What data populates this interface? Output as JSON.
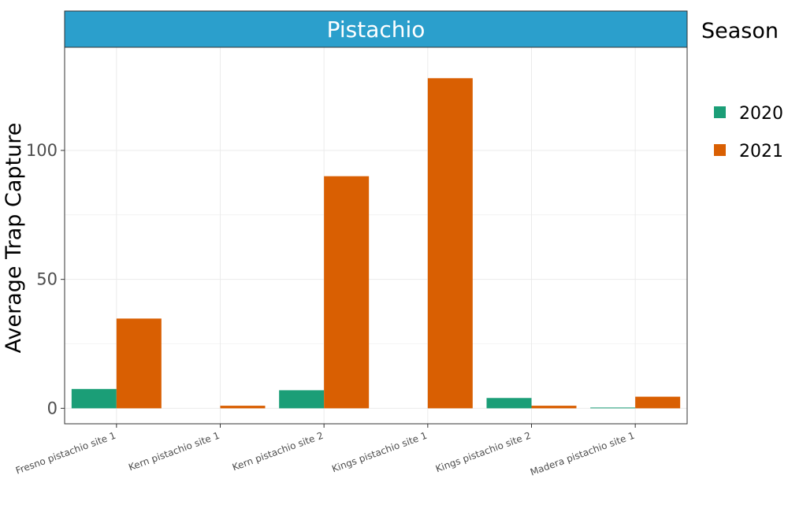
{
  "chart_data": {
    "type": "bar",
    "facet_title": "Pistachio",
    "ylabel": "Average Trap Capture",
    "xlabel": "",
    "ylim": [
      -6,
      140
    ],
    "yticks": [
      0,
      50,
      100
    ],
    "grid": true,
    "legend": {
      "title": "Season",
      "placement": "right"
    },
    "categories": [
      "Fresno pistachio site 1",
      "Kern pistachio site 1",
      "Kern pistachio site 2",
      "Kings pistachio site 1",
      "Kings pistachio site 2",
      "Madera pistachio site 1"
    ],
    "series": [
      {
        "name": "2020",
        "color": "#1b9e77",
        "values": [
          7.5,
          null,
          7,
          null,
          4,
          0.3
        ]
      },
      {
        "name": "2021",
        "color": "#d95f02",
        "values": [
          34.8,
          1,
          90,
          128,
          1,
          4.5
        ]
      }
    ],
    "colors": {
      "strip": "#2b9fcc",
      "grid": "#ebebeb",
      "panel_border": "#333333"
    }
  }
}
